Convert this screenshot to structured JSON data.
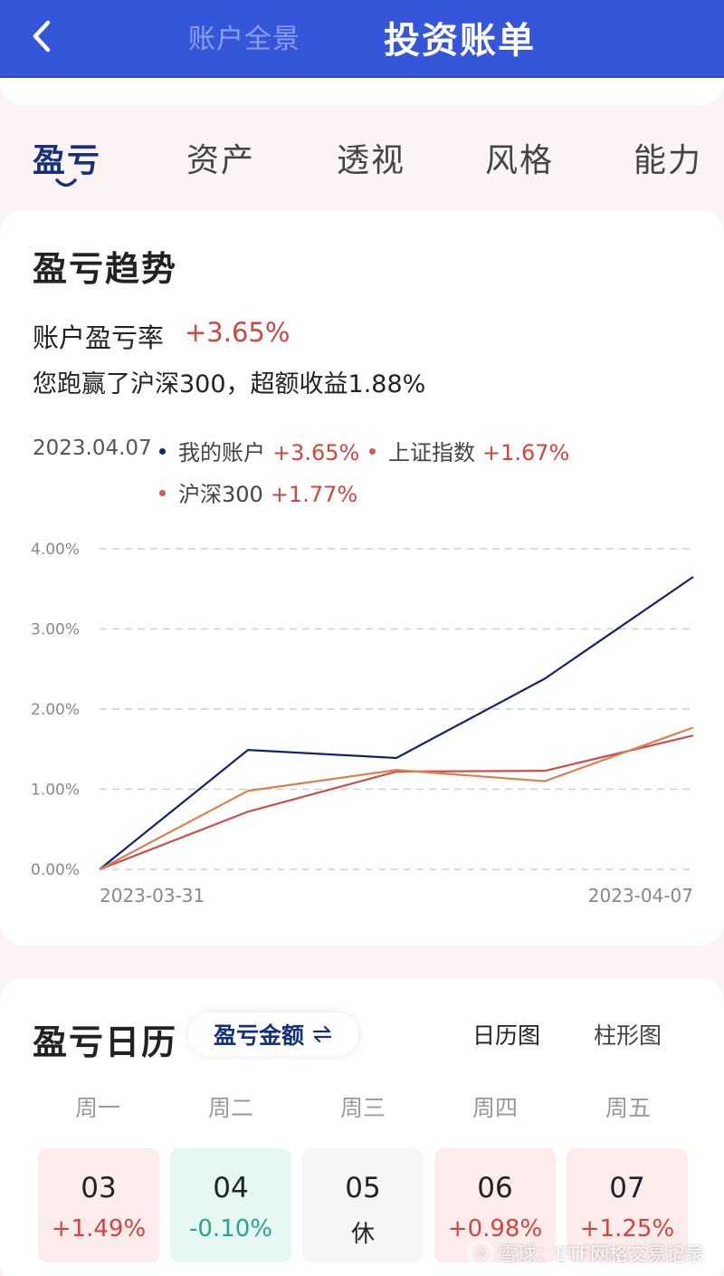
{
  "header": {
    "tab_inactive": "账户全景",
    "tab_active": "投资账单",
    "back_icon": "chevron-left-icon",
    "bg_color": "#3556d8"
  },
  "category_tabs": [
    {
      "label": "盈亏",
      "active": true
    },
    {
      "label": "资产",
      "active": false
    },
    {
      "label": "透视",
      "active": false
    },
    {
      "label": "风格",
      "active": false
    },
    {
      "label": "能力",
      "active": false
    }
  ],
  "trend": {
    "title": "盈亏趋势",
    "rate_label": "账户盈亏率",
    "rate_value": "+3.65%",
    "beat_text": "您跑赢了沪深300，超额收益1.88%",
    "legend": {
      "date": "2023.04.07",
      "items": [
        {
          "name": "我的账户",
          "value": "+3.65%",
          "color": "#16246b"
        },
        {
          "name": "上证指数",
          "value": "+1.67%",
          "color": "#d65a55"
        },
        {
          "name": "沪深300",
          "value": "+1.77%",
          "color": "#d65a55"
        }
      ]
    }
  },
  "chart_data": {
    "type": "line",
    "x": [
      "2023-03-31",
      "2023-04-03",
      "2023-04-04",
      "2023-04-06",
      "2023-04-07"
    ],
    "x_tick_labels": [
      "2023-03-31",
      "2023-04-07"
    ],
    "ylim": [
      0,
      4
    ],
    "y_ticks": [
      "0.00%",
      "1.00%",
      "2.00%",
      "3.00%",
      "4.00%"
    ],
    "grid": true,
    "series": [
      {
        "name": "我的账户",
        "color": "#16246b",
        "values": [
          0,
          1.49,
          1.39,
          2.38,
          3.65
        ]
      },
      {
        "name": "上证指数",
        "color": "#c9504c",
        "values": [
          0,
          0.72,
          1.22,
          1.23,
          1.67
        ]
      },
      {
        "name": "沪深300",
        "color": "#d9824f",
        "values": [
          0,
          0.98,
          1.24,
          1.1,
          1.77
        ]
      }
    ]
  },
  "calendar": {
    "title": "盈亏日历",
    "toggle_label": "盈亏金额",
    "toggle_icon": "swap-arrows-icon",
    "view_tabs": [
      {
        "label": "日历图",
        "active": true
      },
      {
        "label": "柱形图",
        "active": false
      }
    ],
    "weekdays": [
      "周一",
      "周二",
      "周三",
      "周四",
      "周五"
    ],
    "days": [
      {
        "day": "03",
        "value": "+1.49%",
        "kind": "up"
      },
      {
        "day": "04",
        "value": "-0.10%",
        "kind": "down"
      },
      {
        "day": "05",
        "value": "休",
        "kind": "rest"
      },
      {
        "day": "06",
        "value": "+0.98%",
        "kind": "up"
      },
      {
        "day": "07",
        "value": "+1.25%",
        "kind": "up"
      }
    ],
    "colors": {
      "up_bg": "#fdecec",
      "up_text": "#d2443f",
      "down_bg": "#e5f6f3",
      "down_text": "#2ba48c",
      "rest_bg": "#f6f6f8"
    }
  },
  "watermark": {
    "logo_icon": "snowball-logo-icon",
    "text": "雪球：ETF网格交易记录"
  }
}
